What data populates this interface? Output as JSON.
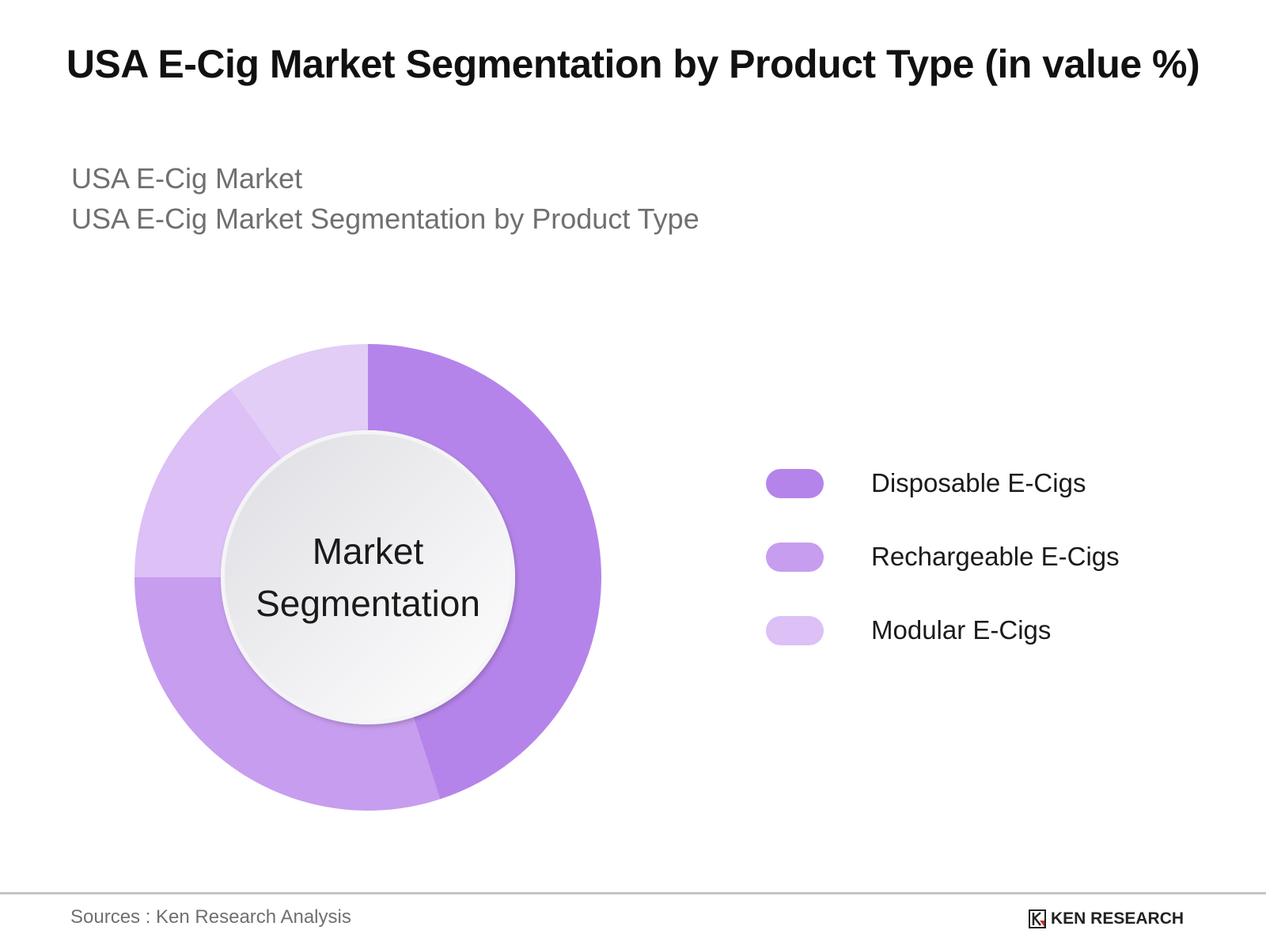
{
  "header": {
    "title": "USA E-Cig Market Segmentation by Product Type (in value %)",
    "subtitle_line1": "USA E-Cig Market",
    "subtitle_line2": "USA E-Cig Market Segmentation by Product Type"
  },
  "donut": {
    "center_line1": "Market",
    "center_line2": "Segmentation"
  },
  "legend": {
    "items": [
      {
        "label": "Disposable E-Cigs",
        "color": "#b584ea"
      },
      {
        "label": "Rechargeable E-Cigs",
        "color": "#c79def"
      },
      {
        "label": "Modular E-Cigs",
        "color": "#dcc0f6"
      }
    ]
  },
  "footer": {
    "source": "Sources : Ken Research Analysis",
    "logo_text": "KEN RESEARCH"
  },
  "chart_data": {
    "type": "pie",
    "variant": "donut",
    "title": "USA E-Cig Market Segmentation by Product Type (in value %)",
    "subtitle": [
      "USA E-Cig Market",
      "USA E-Cig Market Segmentation by Product Type"
    ],
    "center_text": "Market Segmentation",
    "categories": [
      "Disposable E-Cigs",
      "Rechargeable E-Cigs",
      "Modular E-Cigs",
      "Unlabeled segment"
    ],
    "values": [
      45,
      30,
      15,
      10
    ],
    "colors": [
      "#b584ea",
      "#c79def",
      "#dcc0f6",
      "#e2cdf7"
    ],
    "start_angle_deg": 0,
    "direction": "clockwise",
    "legend_position": "right",
    "values_estimated": true,
    "source": "Sources : Ken Research Analysis"
  }
}
